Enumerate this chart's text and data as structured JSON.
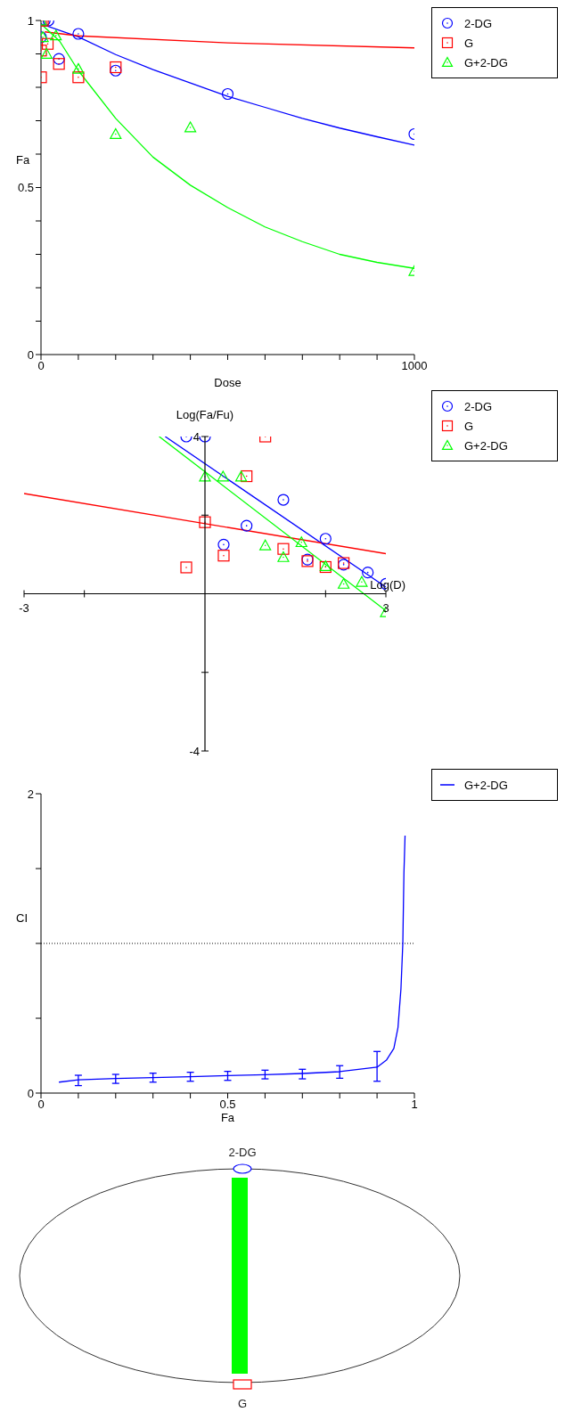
{
  "chart_data": [
    {
      "type": "scatter",
      "xlabel": "Dose",
      "ylabel": "Fa",
      "xlim": [
        0,
        1000
      ],
      "ylim": [
        0,
        1
      ],
      "xticks": [
        0,
        {
          "value": 100,
          "label": null
        },
        {
          "value": 200,
          "label": null
        },
        {
          "value": 300,
          "label": null
        },
        {
          "value": 400,
          "label": null
        },
        {
          "value": 500,
          "label": null
        },
        {
          "value": 600,
          "label": null
        },
        {
          "value": 700,
          "label": null
        },
        {
          "value": 800,
          "label": null
        },
        {
          "value": 900,
          "label": null
        },
        1000
      ],
      "yticks": [
        0,
        {
          "value": 0.1,
          "label": null
        },
        {
          "value": 0.2,
          "label": null
        },
        {
          "value": 0.3,
          "label": null
        },
        {
          "value": 0.4,
          "label": null
        },
        0.5,
        {
          "value": 0.6,
          "label": null
        },
        {
          "value": 0.7,
          "label": null
        },
        {
          "value": 0.8,
          "label": null
        },
        {
          "value": 0.9,
          "label": null
        },
        1
      ],
      "legend": "top right",
      "series": [
        {
          "name": "2-DG",
          "color": "#0000ff",
          "marker": "circle",
          "x": [
            10,
            20,
            0,
            48,
            100,
            200,
            500,
            1000
          ],
          "values": [
            1.0,
            1.0,
            0.95,
            0.885,
            0.96,
            0.85,
            0.78,
            0.66
          ]
        },
        {
          "name": "G",
          "color": "#ff0000",
          "marker": "square",
          "x": [
            0,
            5,
            0,
            18,
            48,
            0,
            100,
            200
          ],
          "values": [
            1.0,
            1.0,
            0.91,
            0.93,
            0.87,
            0.83,
            0.83,
            0.86
          ]
        },
        {
          "name": "G+2-DG",
          "color": "#00ff00",
          "marker": "triangle",
          "x": [
            0,
            5,
            15,
            40,
            100,
            200,
            400,
            1000
          ],
          "values": [
            1.0,
            0.95,
            0.9,
            0.955,
            0.855,
            0.66,
            0.68,
            0.25
          ]
        },
        {
          "type": "line",
          "color": "#0000ff",
          "x": [
            0,
            100,
            200,
            300,
            400,
            500,
            600,
            700,
            800,
            900,
            1000
          ],
          "values": [
            0.99,
            0.951,
            0.898,
            0.853,
            0.813,
            0.773,
            0.74,
            0.707,
            0.678,
            0.652,
            0.627
          ]
        },
        {
          "type": "line",
          "color": "#ff0000",
          "x": [
            10,
            100,
            500,
            1000
          ],
          "values": [
            0.966,
            0.954,
            0.933,
            0.918
          ]
        },
        {
          "type": "line",
          "color": "#00ff00",
          "x": [
            0,
            50,
            100,
            200,
            300,
            400,
            500,
            600,
            700,
            800,
            900,
            1000
          ],
          "values": [
            0.99,
            0.938,
            0.85,
            0.707,
            0.591,
            0.507,
            0.44,
            0.382,
            0.338,
            0.3,
            0.276,
            0.258
          ]
        }
      ]
    },
    {
      "type": "scatter",
      "xlabel": "Log(D)",
      "ylabel": "Log(Fa/Fu)",
      "xlim": [
        -3,
        3
      ],
      "ylim": [
        -4,
        4
      ],
      "xticks": [
        -3,
        {
          "value": -2,
          "label": null
        },
        {
          "value": 2,
          "label": null
        },
        3
      ],
      "yticks": [
        -4,
        {
          "value": -2,
          "label": null
        },
        {
          "value": 2,
          "label": null
        },
        4
      ],
      "legend": "top right",
      "series": [
        {
          "name": "2-DG",
          "color": "#0000ff",
          "marker": "circle",
          "x": [
            -0.31,
            0,
            1.3,
            0.69,
            0.31,
            2.0,
            1.7,
            2.3,
            2.7,
            3.0
          ],
          "values": [
            4,
            4,
            2.39,
            1.73,
            1.25,
            1.4,
            0.87,
            0.74,
            0.54,
            0.25
          ]
        },
        {
          "name": "G",
          "color": "#ff0000",
          "marker": "square",
          "x": [
            1.0,
            0.69,
            0,
            0.31,
            -0.31,
            1.3,
            1.7,
            2.0,
            2.3
          ],
          "values": [
            4,
            2.99,
            1.82,
            0.97,
            0.67,
            1.14,
            0.83,
            0.68,
            0.78
          ]
        },
        {
          "name": "G+2-DG",
          "color": "#00ff00",
          "marker": "triangle",
          "x": [
            0,
            0.3,
            0.6,
            1.0,
            1.3,
            1.6,
            2.0,
            2.3,
            2.6,
            3.0
          ],
          "values": [
            2.98,
            2.98,
            2.98,
            1.23,
            0.93,
            1.31,
            0.7,
            0.25,
            0.3,
            -0.47
          ]
        },
        {
          "type": "line",
          "color": "#0000ff",
          "x": [
            -0.66,
            3.0
          ],
          "values": [
            4.0,
            0.17
          ]
        },
        {
          "type": "line",
          "color": "#ff0000",
          "x": [
            -3,
            3
          ],
          "values": [
            2.55,
            1.02
          ]
        },
        {
          "type": "line",
          "color": "#00ff00",
          "x": [
            -0.76,
            3.0
          ],
          "values": [
            4.0,
            -0.43
          ]
        }
      ]
    },
    {
      "type": "line",
      "xlabel": "Fa",
      "ylabel": "CI",
      "xlim": [
        0,
        1
      ],
      "ylim": [
        0,
        2
      ],
      "xticks": [
        0,
        {
          "value": 0.1,
          "label": null
        },
        {
          "value": 0.2,
          "label": null
        },
        {
          "value": 0.3,
          "label": null
        },
        {
          "value": 0.4,
          "label": null
        },
        0.5,
        {
          "value": 0.6,
          "label": null
        },
        {
          "value": 0.7,
          "label": null
        },
        {
          "value": 0.8,
          "label": null
        },
        {
          "value": 0.9,
          "label": null
        },
        1
      ],
      "yticks": [
        0,
        {
          "value": 0.5,
          "label": null
        },
        {
          "value": 1,
          "label": null
        },
        {
          "value": 1.5,
          "label": null
        },
        2
      ],
      "legend": "top right",
      "ref_lines": [
        {
          "axis": "y",
          "value": 1,
          "color": "#000000",
          "line_style": "dotted"
        }
      ],
      "series": [
        {
          "name": "G+2-DG",
          "color": "#0000ff",
          "marker": "none",
          "x": [
            0.048,
            0.1,
            0.2,
            0.3,
            0.4,
            0.5,
            0.6,
            0.7,
            0.8,
            0.9,
            0.925,
            0.945,
            0.956,
            0.964,
            0.969,
            0.972,
            0.975
          ],
          "values": [
            0.073,
            0.089,
            0.097,
            0.103,
            0.109,
            0.117,
            0.123,
            0.131,
            0.143,
            0.173,
            0.22,
            0.298,
            0.437,
            0.696,
            1.0,
            1.47,
            1.72
          ],
          "errors": [
            null,
            [
              0.05,
              0.119
            ],
            [
              0.065,
              0.125
            ],
            [
              0.073,
              0.133
            ],
            [
              0.079,
              0.139
            ],
            [
              0.085,
              0.145
            ],
            [
              0.095,
              0.153
            ],
            [
              0.095,
              0.159
            ],
            [
              0.099,
              0.183
            ],
            [
              0.079,
              0.278
            ],
            null,
            null,
            null,
            null,
            null,
            null,
            null
          ]
        }
      ]
    },
    {
      "type": "other",
      "categories": [
        "2-DG",
        "G"
      ],
      "colors": [
        "#0000ff",
        "#ff0000"
      ],
      "color": "#00ff00"
    }
  ]
}
